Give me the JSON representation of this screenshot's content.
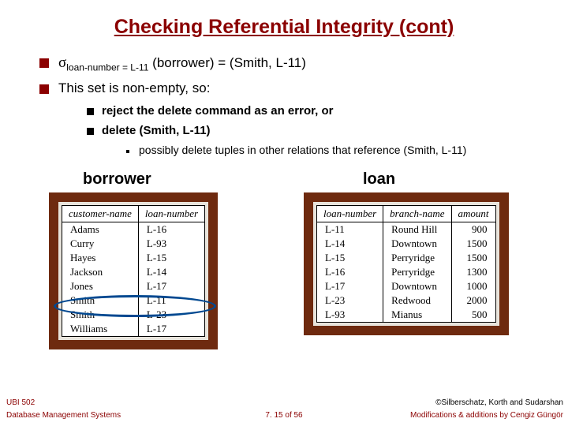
{
  "title": {
    "text": "Checking Referential Integrity (cont)",
    "color": "#8b0000",
    "fontsize": 25
  },
  "bullets": {
    "b1_html": "<span class='sigma'>σ</span><span class='subscript'>loan-number = L-11</span> (borrower) = (Smith, L-11)",
    "b2": "This set is non-empty, so:",
    "s1": "reject the delete command as an error, or",
    "s2": "delete (Smith, L-11)",
    "ss1": "possibly delete tuples in other relations that reference (Smith, L-11)"
  },
  "labels": {
    "borrower": "borrower",
    "loan": "loan"
  },
  "borrower_table": {
    "columns": [
      "customer-name",
      "loan-number"
    ],
    "rows": [
      [
        "Adams",
        "L-16"
      ],
      [
        "Curry",
        "L-93"
      ],
      [
        "Hayes",
        "L-15"
      ],
      [
        "Jackson",
        "L-14"
      ],
      [
        "Jones",
        "L-17"
      ],
      [
        "Smith",
        "L-11"
      ],
      [
        "Smith",
        "L-23"
      ],
      [
        "Williams",
        "L-17"
      ]
    ]
  },
  "loan_table": {
    "columns": [
      "loan-number",
      "branch-name",
      "amount"
    ],
    "rows": [
      [
        "L-11",
        "Round Hill",
        "900"
      ],
      [
        "L-14",
        "Downtown",
        "1500"
      ],
      [
        "L-15",
        "Perryridge",
        "1500"
      ],
      [
        "L-16",
        "Perryridge",
        "1300"
      ],
      [
        "L-17",
        "Downtown",
        "1000"
      ],
      [
        "L-23",
        "Redwood",
        "2000"
      ],
      [
        "L-93",
        "Mianus",
        "500"
      ]
    ]
  },
  "footer": {
    "course": "UBI 502",
    "dept": "Database Management Systems",
    "page": "7. 15 of 56",
    "copyright": "©Silberschatz, Korth and Sudarshan",
    "mods": "Modifications & additions by Cengiz Güngör"
  },
  "styling": {
    "border_color": "#6e2a0f",
    "ellipse_color": "#004890",
    "bullet_color": "#8b0000"
  }
}
